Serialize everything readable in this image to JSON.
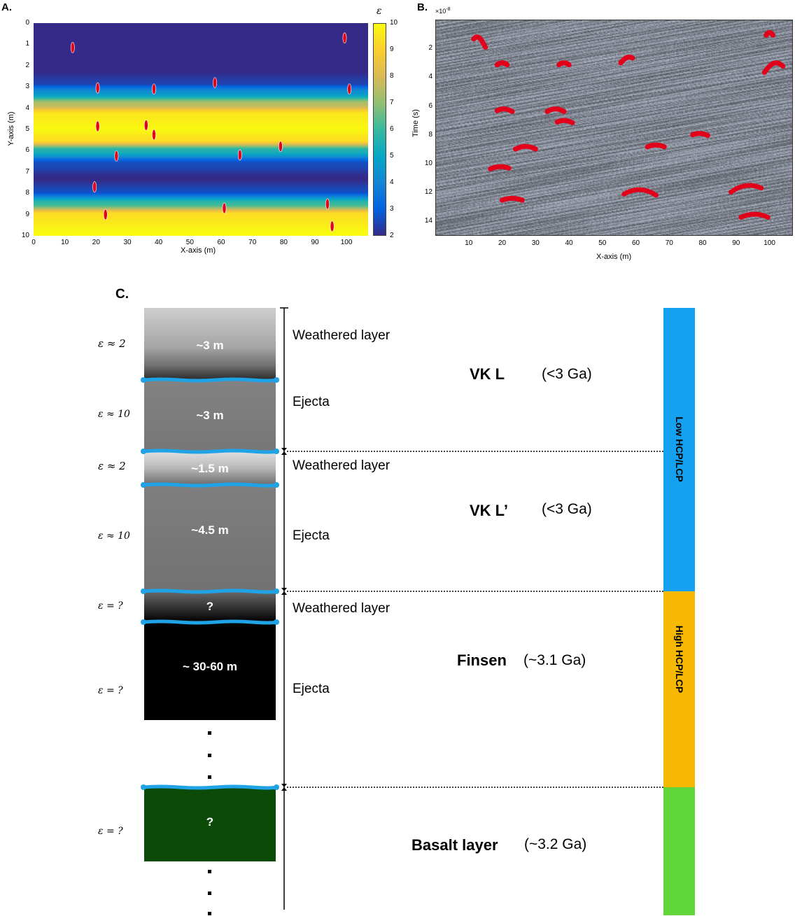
{
  "panel_labels": {
    "a": "A.",
    "b": "B.",
    "c": "C."
  },
  "colors": {
    "colormap": [
      "#352a87",
      "#0363e1",
      "#1485d4",
      "#06a7c6",
      "#38b99e",
      "#92bf73",
      "#d9ba56",
      "#fcce2e",
      "#f9fb0e"
    ],
    "marker": "#e3001b",
    "interface": "#1fa3e6",
    "bar_low": "#14a2f0",
    "bar_high": "#f6b800",
    "bar_basalt": "#60d63b",
    "basalt_fill": "#0c4a07"
  },
  "chart_data": [
    {
      "type": "heatmap",
      "title": "",
      "xlabel": "X-axis (m)",
      "ylabel": "Y-axis (m)",
      "xlim": [
        0,
        107
      ],
      "ylim": [
        0,
        10
      ],
      "y_reversed": true,
      "xticks": [
        "0",
        "10",
        "20",
        "30",
        "40",
        "50",
        "60",
        "70",
        "80",
        "90",
        "100"
      ],
      "yticks": [
        "0",
        "1",
        "2",
        "3",
        "4",
        "5",
        "6",
        "7",
        "8",
        "9",
        "10"
      ],
      "colorbar": {
        "label": "ε",
        "min": 2,
        "max": 10,
        "ticks": [
          "2",
          "3",
          "4",
          "5",
          "6",
          "7",
          "8",
          "9",
          "10"
        ]
      },
      "permittivity_profile": [
        {
          "y": 0,
          "eps": 2
        },
        {
          "y": 2.2,
          "eps": 2
        },
        {
          "y": 2.8,
          "eps": 2.4
        },
        {
          "y": 3.3,
          "eps": 4.5
        },
        {
          "y": 3.8,
          "eps": 7.5
        },
        {
          "y": 4.3,
          "eps": 9.6
        },
        {
          "y": 5.0,
          "eps": 9.9
        },
        {
          "y": 5.5,
          "eps": 9.4
        },
        {
          "y": 6.0,
          "eps": 5.5
        },
        {
          "y": 6.6,
          "eps": 2.6
        },
        {
          "y": 7.3,
          "eps": 2.0
        },
        {
          "y": 7.9,
          "eps": 2.6
        },
        {
          "y": 8.5,
          "eps": 6.0
        },
        {
          "y": 9.0,
          "eps": 9.4
        },
        {
          "y": 10,
          "eps": 10
        }
      ],
      "scatterers": [
        {
          "x": 12.5,
          "y": 1.15
        },
        {
          "x": 99.5,
          "y": 0.7
        },
        {
          "x": 20.5,
          "y": 3.05
        },
        {
          "x": 38.5,
          "y": 3.1
        },
        {
          "x": 58,
          "y": 2.8
        },
        {
          "x": 101,
          "y": 3.1
        },
        {
          "x": 20.5,
          "y": 4.85
        },
        {
          "x": 36,
          "y": 4.8
        },
        {
          "x": 38.5,
          "y": 5.25
        },
        {
          "x": 79,
          "y": 5.8
        },
        {
          "x": 26.5,
          "y": 6.25
        },
        {
          "x": 66,
          "y": 6.2
        },
        {
          "x": 19.5,
          "y": 7.7
        },
        {
          "x": 23,
          "y": 9.0
        },
        {
          "x": 61,
          "y": 8.7
        },
        {
          "x": 94,
          "y": 8.5
        },
        {
          "x": 95.5,
          "y": 9.55
        }
      ]
    },
    {
      "type": "scatter",
      "title": "",
      "xlabel": "X-axis (m)",
      "ylabel": "Time (s)",
      "exponent_label": "×10",
      "exponent": "-8",
      "xlim": [
        0,
        107
      ],
      "ylim": [
        0,
        15
      ],
      "y_reversed": true,
      "xticks": [
        "10",
        "20",
        "30",
        "40",
        "50",
        "60",
        "70",
        "80",
        "90",
        "100"
      ],
      "yticks": [
        "2",
        "4",
        "6",
        "8",
        "10",
        "12",
        "14"
      ],
      "hyperbolas": [
        {
          "x0": 12.5,
          "t0": 1.2,
          "xl": 11.5,
          "xr": 15,
          "tr": 2.5
        },
        {
          "x0": 20,
          "t0": 3.0,
          "xl": 18.5,
          "xr": 21.5
        },
        {
          "x0": 38.5,
          "t0": 3.0,
          "xl": 37,
          "xr": 40
        },
        {
          "x0": 58,
          "t0": 2.6,
          "xl": 55.5,
          "xr": 59
        },
        {
          "x0": 100,
          "t0": 0.9,
          "xl": 99,
          "xr": 101
        },
        {
          "x0": 102,
          "t0": 3.0,
          "xl": 98.5,
          "xr": 104
        },
        {
          "x0": 20.5,
          "t0": 6.2,
          "xl": 18.5,
          "xr": 23
        },
        {
          "x0": 36,
          "t0": 6.2,
          "xl": 33.5,
          "xr": 38.5
        },
        {
          "x0": 38.5,
          "t0": 7.0,
          "xl": 36.5,
          "xr": 41
        },
        {
          "x0": 79,
          "t0": 7.9,
          "xl": 77,
          "xr": 81.5
        },
        {
          "x0": 27,
          "t0": 8.8,
          "xl": 24,
          "xr": 30
        },
        {
          "x0": 66,
          "t0": 8.7,
          "xl": 63.5,
          "xr": 68.5
        },
        {
          "x0": 19.5,
          "t0": 10.2,
          "xl": 16.5,
          "xr": 22
        },
        {
          "x0": 23,
          "t0": 12.4,
          "xl": 20,
          "xr": 26
        },
        {
          "x0": 61,
          "t0": 11.8,
          "xl": 56.5,
          "xr": 66
        },
        {
          "x0": 94,
          "t0": 11.5,
          "xl": 88.5,
          "xr": 97.5
        },
        {
          "x0": 95.5,
          "t0": 13.5,
          "xl": 91.5,
          "xr": 99.5
        }
      ]
    }
  ],
  "column": {
    "layers": [
      {
        "eps": "ε ≈ 2",
        "thickness": "~3 m",
        "name": "Weathered layer"
      },
      {
        "eps": "ε ≈ 10",
        "thickness": "~3 m",
        "name": "Ejecta"
      },
      {
        "eps": "ε ≈ 2",
        "thickness": "~1.5 m",
        "name": "Weathered layer"
      },
      {
        "eps": "ε ≈ 10",
        "thickness": "~4.5 m",
        "name": "Ejecta"
      },
      {
        "eps": "ε = ?",
        "thickness": "?",
        "name": "Weathered layer"
      },
      {
        "eps": "ε = ?",
        "thickness": "~ 30-60 m",
        "name": "Ejecta"
      },
      {
        "eps": "ε = ?",
        "thickness": "?",
        "name": ""
      }
    ],
    "units": [
      {
        "name": "VK L",
        "age": "(<3 Ga)"
      },
      {
        "name": "VK L’",
        "age": "(<3 Ga)"
      },
      {
        "name": "Finsen",
        "age": "(~3.1 Ga)"
      },
      {
        "name": "Basalt layer",
        "age": "(~3.2 Ga)"
      }
    ],
    "bar_labels": {
      "low": "Low HCP/LCP",
      "high": "High HCP/LCP"
    }
  }
}
